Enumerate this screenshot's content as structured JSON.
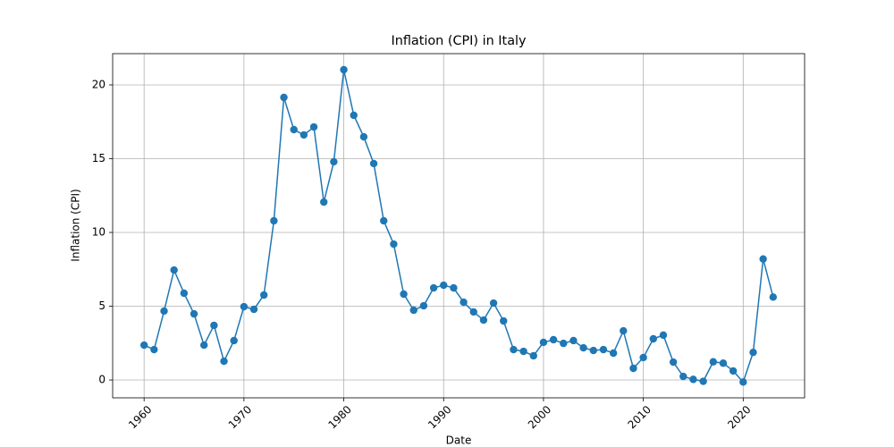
{
  "chart_data": {
    "type": "line",
    "title": "Inflation (CPI) in Italy",
    "x_label": "Date",
    "y_label": "Inflation (CPI)",
    "x": [
      1960,
      1961,
      1962,
      1963,
      1964,
      1965,
      1966,
      1967,
      1968,
      1969,
      1970,
      1971,
      1972,
      1973,
      1974,
      1975,
      1976,
      1977,
      1978,
      1979,
      1980,
      1981,
      1982,
      1983,
      1984,
      1985,
      1986,
      1987,
      1988,
      1989,
      1990,
      1991,
      1992,
      1993,
      1994,
      1995,
      1996,
      1997,
      1998,
      1999,
      2000,
      2001,
      2002,
      2003,
      2004,
      2005,
      2006,
      2007,
      2008,
      2009,
      2010,
      2011,
      2012,
      2013,
      2014,
      2015,
      2016,
      2017,
      2018,
      2019,
      2020,
      2021,
      2022,
      2023
    ],
    "values": [
      2.36,
      2.06,
      4.67,
      7.45,
      5.88,
      4.48,
      2.36,
      3.7,
      1.27,
      2.67,
      4.97,
      4.79,
      5.76,
      10.79,
      19.15,
      16.97,
      16.61,
      17.15,
      12.06,
      14.79,
      21.03,
      17.94,
      16.48,
      14.67,
      10.79,
      9.21,
      5.82,
      4.73,
      5.03,
      6.24,
      6.42,
      6.24,
      5.27,
      4.61,
      4.06,
      5.21,
      4.0,
      2.06,
      1.94,
      1.64,
      2.55,
      2.73,
      2.48,
      2.67,
      2.18,
      2.0,
      2.06,
      1.82,
      3.33,
      0.79,
      1.52,
      2.79,
      3.04,
      1.21,
      0.24,
      0.04,
      -0.09,
      1.23,
      1.14,
      0.61,
      -0.14,
      1.87,
      8.2,
      5.62
    ],
    "color": "#1f77b4",
    "marker": "circle",
    "grid": true,
    "xlim": [
      1956.85,
      2026.15
    ],
    "xticks": [
      1960,
      1970,
      1980,
      1990,
      2000,
      2010,
      2020
    ],
    "ylim": [
      -1.21,
      22.12
    ],
    "yticks": [
      0,
      5,
      10,
      15,
      20
    ]
  }
}
